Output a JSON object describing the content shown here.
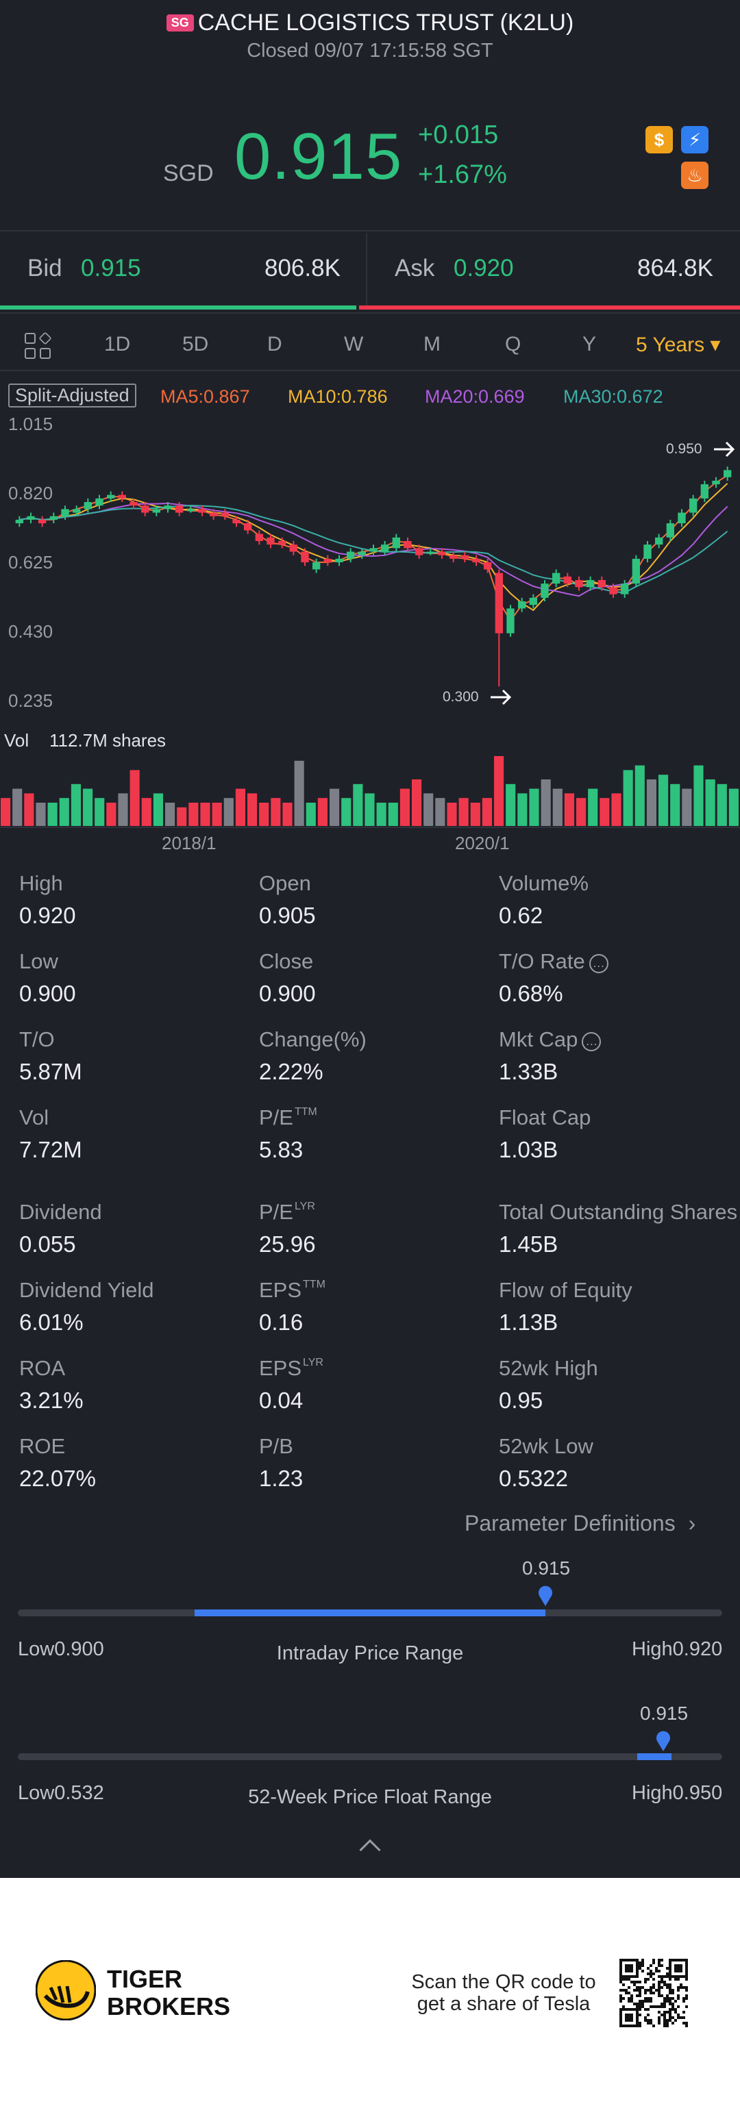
{
  "header": {
    "market": "SG",
    "title": "CACHE LOGISTICS TRUST (K2LU)",
    "status": "Closed 09/07 17:15:58 SGT"
  },
  "quote": {
    "currency": "SGD",
    "price": "0.915",
    "change": "+0.015",
    "change_pct": "+1.67%",
    "badges": [
      "$",
      "⚡",
      "♨"
    ]
  },
  "bid_ask": {
    "bid_label": "Bid",
    "bid_price": "0.915",
    "bid_size": "806.8K",
    "ask_label": "Ask",
    "ask_price": "0.920",
    "ask_size": "864.8K",
    "bid_fraction": 0.48
  },
  "tabs": [
    "1D",
    "5D",
    "D",
    "W",
    "M",
    "Q",
    "Y",
    "5 Years ▾"
  ],
  "active_tab": "5 Years ▾",
  "ma": {
    "split": "Split-Adjusted",
    "ma5": "MA5:0.867",
    "ma10": "MA10:0.786",
    "ma20": "MA20:0.669",
    "ma30": "MA30:0.672"
  },
  "colors": {
    "up": "#2ec27e",
    "down": "#f0384c",
    "ma5": "#f06a3a",
    "ma10": "#f2b530",
    "ma20": "#b05be0",
    "ma30": "#3bb0a8",
    "accent": "#3d7cf0"
  },
  "chart_data": {
    "type": "candlestick",
    "y_ticks": [
      "1.015",
      "0.820",
      "0.625",
      "0.430",
      "0.235"
    ],
    "ylim": [
      0.235,
      1.015
    ],
    "max_label": "0.950",
    "min_label": "0.300",
    "x_labels": [
      "2018/1",
      "2020/1"
    ],
    "volume_label": "Vol",
    "volume_value": "112.7M shares",
    "candles": [
      {
        "o": 0.76,
        "c": 0.77
      },
      {
        "o": 0.77,
        "c": 0.78
      },
      {
        "o": 0.77,
        "c": 0.76
      },
      {
        "o": 0.77,
        "c": 0.78
      },
      {
        "o": 0.78,
        "c": 0.8
      },
      {
        "o": 0.79,
        "c": 0.8
      },
      {
        "o": 0.8,
        "c": 0.82
      },
      {
        "o": 0.81,
        "c": 0.83
      },
      {
        "o": 0.83,
        "c": 0.84
      },
      {
        "o": 0.84,
        "c": 0.83
      },
      {
        "o": 0.82,
        "c": 0.81
      },
      {
        "o": 0.81,
        "c": 0.79
      },
      {
        "o": 0.79,
        "c": 0.8
      },
      {
        "o": 0.8,
        "c": 0.81
      },
      {
        "o": 0.81,
        "c": 0.79
      },
      {
        "o": 0.8,
        "c": 0.8
      },
      {
        "o": 0.8,
        "c": 0.79
      },
      {
        "o": 0.79,
        "c": 0.78
      },
      {
        "o": 0.79,
        "c": 0.78
      },
      {
        "o": 0.77,
        "c": 0.76
      },
      {
        "o": 0.76,
        "c": 0.74
      },
      {
        "o": 0.73,
        "c": 0.71
      },
      {
        "o": 0.72,
        "c": 0.7
      },
      {
        "o": 0.71,
        "c": 0.7
      },
      {
        "o": 0.7,
        "c": 0.68
      },
      {
        "o": 0.68,
        "c": 0.65
      },
      {
        "o": 0.63,
        "c": 0.65
      },
      {
        "o": 0.66,
        "c": 0.65
      },
      {
        "o": 0.65,
        "c": 0.66
      },
      {
        "o": 0.66,
        "c": 0.68
      },
      {
        "o": 0.67,
        "c": 0.68
      },
      {
        "o": 0.68,
        "c": 0.69
      },
      {
        "o": 0.68,
        "c": 0.7
      },
      {
        "o": 0.69,
        "c": 0.72
      },
      {
        "o": 0.71,
        "c": 0.69
      },
      {
        "o": 0.69,
        "c": 0.67
      },
      {
        "o": 0.68,
        "c": 0.68
      },
      {
        "o": 0.68,
        "c": 0.67
      },
      {
        "o": 0.67,
        "c": 0.66
      },
      {
        "o": 0.67,
        "c": 0.66
      },
      {
        "o": 0.66,
        "c": 0.65
      },
      {
        "o": 0.65,
        "c": 0.63
      },
      {
        "o": 0.62,
        "c": 0.45
      },
      {
        "o": 0.45,
        "c": 0.52
      },
      {
        "o": 0.52,
        "c": 0.54
      },
      {
        "o": 0.53,
        "c": 0.55
      },
      {
        "o": 0.55,
        "c": 0.59
      },
      {
        "o": 0.59,
        "c": 0.62
      },
      {
        "o": 0.61,
        "c": 0.59
      },
      {
        "o": 0.6,
        "c": 0.58
      },
      {
        "o": 0.58,
        "c": 0.6
      },
      {
        "o": 0.6,
        "c": 0.58
      },
      {
        "o": 0.58,
        "c": 0.56
      },
      {
        "o": 0.56,
        "c": 0.59
      },
      {
        "o": 0.59,
        "c": 0.66
      },
      {
        "o": 0.66,
        "c": 0.7
      },
      {
        "o": 0.7,
        "c": 0.72
      },
      {
        "o": 0.72,
        "c": 0.76
      },
      {
        "o": 0.76,
        "c": 0.79
      },
      {
        "o": 0.79,
        "c": 0.83
      },
      {
        "o": 0.83,
        "c": 0.87
      },
      {
        "o": 0.87,
        "c": 0.88
      },
      {
        "o": 0.89,
        "c": 0.91
      }
    ],
    "volume": [
      6,
      8,
      7,
      5,
      5,
      6,
      9,
      8,
      6,
      5,
      7,
      12,
      6,
      7,
      5,
      4,
      5,
      5,
      5,
      6,
      8,
      7,
      5,
      6,
      5,
      14,
      5,
      6,
      8,
      6,
      9,
      7,
      5,
      5,
      8,
      10,
      7,
      6,
      5,
      6,
      5,
      6,
      15,
      9,
      7,
      8,
      10,
      8,
      7,
      6,
      8,
      6,
      7,
      12,
      13,
      10,
      11,
      9,
      8,
      13,
      10,
      9,
      8
    ],
    "volume_up": [
      false,
      false,
      false,
      true,
      true,
      true,
      true,
      true,
      true,
      false,
      false,
      false,
      false,
      true,
      false,
      false,
      false,
      false,
      false,
      false,
      false,
      false,
      false,
      false,
      false,
      false,
      true,
      false,
      true,
      true,
      true,
      true,
      true,
      true,
      false,
      false,
      false,
      false,
      false,
      false,
      false,
      false,
      false,
      true,
      true,
      true,
      true,
      true,
      false,
      false,
      true,
      false,
      false,
      true,
      true,
      true,
      true,
      true,
      true,
      true,
      true,
      true,
      true
    ]
  },
  "stats": [
    {
      "label": "High",
      "value": "0.920"
    },
    {
      "label": "Open",
      "value": "0.905"
    },
    {
      "label": "Volume%",
      "value": "0.62"
    },
    {
      "label": "Low",
      "value": "0.900"
    },
    {
      "label": "Close",
      "value": "0.900"
    },
    {
      "label": "T/O Rate",
      "value": "0.68%"
    },
    {
      "label": "T/O",
      "value": "5.87M"
    },
    {
      "label": "Change(%)",
      "value": "2.22%"
    },
    {
      "label": "Mkt Cap",
      "value": "1.33B"
    },
    {
      "label": "Vol",
      "value": "7.72M"
    },
    {
      "label": "P/E",
      "sup": "TTM",
      "value": "5.83"
    },
    {
      "label": "Float Cap",
      "value": "1.03B"
    },
    {
      "label": "Dividend",
      "value": "0.055"
    },
    {
      "label": "P/E",
      "sup": "LYR",
      "value": "25.96"
    },
    {
      "label": "Total Outstanding Shares",
      "value": "1.45B"
    },
    {
      "label": "Dividend Yield",
      "value": "6.01%"
    },
    {
      "label": "EPS",
      "sup": "TTM",
      "value": "0.16"
    },
    {
      "label": "Flow of Equity",
      "value": "1.13B"
    },
    {
      "label": "ROA",
      "value": "3.21%"
    },
    {
      "label": "EPS",
      "sup": "LYR",
      "value": "0.04"
    },
    {
      "label": "52wk High",
      "value": "0.95"
    },
    {
      "label": "ROE",
      "value": "22.07%"
    },
    {
      "label": "P/B",
      "value": "1.23"
    },
    {
      "label": "52wk Low",
      "value": "0.5322"
    }
  ],
  "param_def": "Parameter Definitions",
  "intraday": {
    "title": "Intraday Price Range",
    "low": "Low0.900",
    "high": "High0.920",
    "current": "0.915",
    "position": 0.75
  },
  "week52": {
    "title": "52-Week Price Float Range",
    "low": "Low0.532",
    "high": "High0.950",
    "current": "0.915",
    "position": 0.91
  },
  "footer": {
    "brand_line1": "TIGER",
    "brand_line2": "BROKERS",
    "scan_line1": "Scan the QR code to",
    "scan_line2": "get a share of Tesla"
  }
}
